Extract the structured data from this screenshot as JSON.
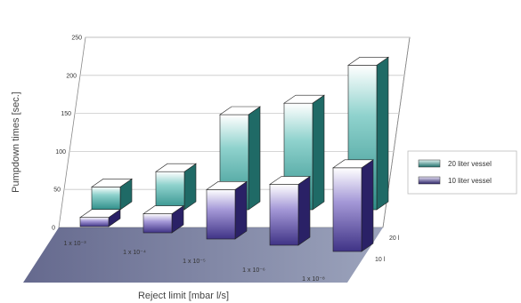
{
  "chart_data": {
    "type": "bar",
    "title": "",
    "xlabel": "Reject limit [mbar l/s]",
    "ylabel": "Pumpdown times [sec.]",
    "categories": [
      "1 x 10⁻³",
      "1 x 10⁻⁴",
      "1 x 10⁻⁵",
      "1 x 10⁻⁶",
      "1 x 10⁻⁸"
    ],
    "depth_labels": [
      "10 l",
      "20 l"
    ],
    "y_ticks": [
      "0",
      "50",
      "100",
      "150",
      "200",
      "250"
    ],
    "ylim": [
      0,
      250
    ],
    "grid": true,
    "legend_position": "right",
    "series": [
      {
        "name": "20 liter vessel",
        "values": [
          30,
          50,
          125,
          140,
          190
        ],
        "color": "#3e9e98"
      },
      {
        "name": "10 liter vessel",
        "values": [
          12,
          25,
          65,
          80,
          110
        ],
        "color": "#574d9e"
      }
    ]
  }
}
